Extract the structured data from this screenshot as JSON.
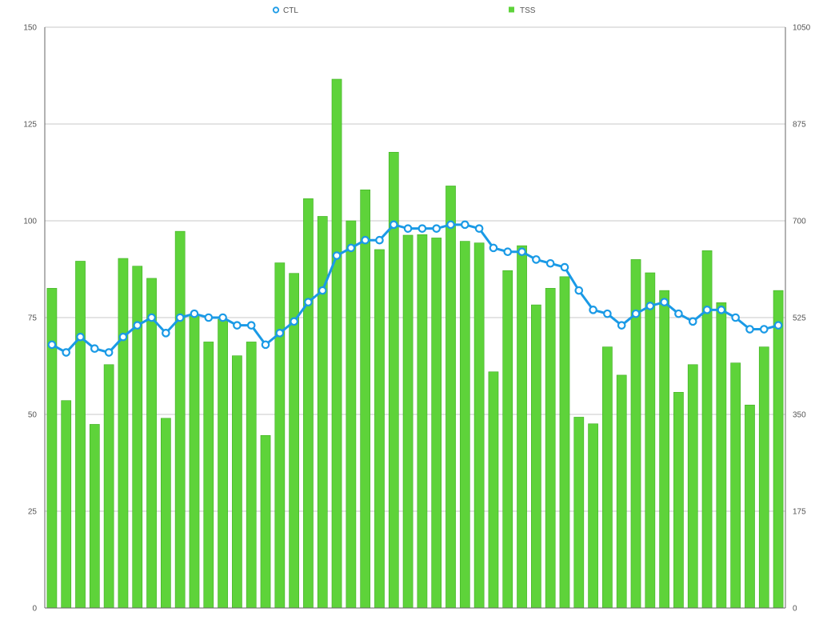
{
  "chart_data": {
    "type": "bar",
    "title": "",
    "legend": {
      "placement": "top-center",
      "items": [
        {
          "label": "CTL",
          "kind": "line-marker"
        },
        {
          "label": "TSS",
          "kind": "bar"
        }
      ]
    },
    "y_left": {
      "range": [
        0,
        150
      ],
      "ticks": [
        "0",
        "25",
        "50",
        "75",
        "100",
        "125",
        "150"
      ],
      "tick_values": [
        0,
        25,
        50,
        75,
        100,
        125,
        150
      ]
    },
    "y_right": {
      "range": [
        0,
        1050
      ],
      "ticks": [
        "0",
        "175",
        "350",
        "525",
        "700",
        "875",
        "1050"
      ],
      "tick_values": [
        0,
        175,
        350,
        525,
        700,
        875,
        1050
      ]
    },
    "grid": true,
    "categories_count": 52,
    "series": [
      {
        "name": "TSS",
        "type": "bar",
        "axis": "right",
        "color": "#5ed33a",
        "values": [
          578,
          375,
          627,
          332,
          440,
          632,
          618,
          596,
          343,
          681,
          530,
          481,
          522,
          456,
          481,
          312,
          624,
          605,
          740,
          708,
          956,
          700,
          756,
          648,
          824,
          674,
          675,
          669,
          763,
          663,
          660,
          427,
          610,
          655,
          548,
          578,
          599,
          345,
          333,
          472,
          421,
          630,
          606,
          574,
          390,
          440,
          646,
          552,
          443,
          367,
          472,
          574
        ]
      },
      {
        "name": "CTL",
        "type": "line",
        "axis": "left",
        "color": "#1a9ae6",
        "values": [
          68,
          66,
          70,
          67,
          66,
          70,
          73,
          75,
          71,
          75,
          76,
          75,
          75,
          73,
          73,
          68,
          71,
          74,
          79,
          82,
          91,
          93,
          95,
          95,
          99,
          98,
          98,
          98,
          99,
          99,
          98,
          93,
          92,
          92,
          90,
          89,
          88,
          82,
          77,
          76,
          73,
          76,
          78,
          79,
          76,
          74,
          77,
          77,
          75,
          72,
          72,
          73
        ]
      }
    ],
    "colors": {
      "bar": "#5ed33a",
      "bar_edge": "#3fae22",
      "line": "#1a9ae6",
      "grid": "#c8c8c8",
      "axis": "#666666"
    }
  }
}
